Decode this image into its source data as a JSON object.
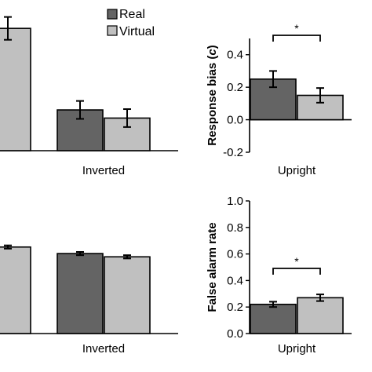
{
  "colors": {
    "real": "#646464",
    "virtual": "#c0c0c0",
    "axis": "#000000"
  },
  "legend": {
    "items": [
      {
        "label": "Real"
      },
      {
        "label": "Virtual"
      }
    ]
  },
  "chart_data": [
    {
      "panel": "top-left",
      "type": "bar",
      "categories": [
        "",
        "Inverted"
      ],
      "series": [
        {
          "name": "Real",
          "values": [
            null,
            1.0
          ],
          "errors": [
            null,
            0.22
          ]
        },
        {
          "name": "Virtual",
          "values": [
            3.0,
            0.8
          ],
          "errors": [
            0.28,
            0.22
          ]
        }
      ],
      "ylim": [
        0,
        3.6
      ]
    },
    {
      "panel": "top-right",
      "type": "bar",
      "categories": [
        "Upright"
      ],
      "series": [
        {
          "name": "Real",
          "values": [
            0.25
          ],
          "errors": [
            0.05
          ]
        },
        {
          "name": "Virtual",
          "values": [
            0.15
          ],
          "errors": [
            0.045
          ]
        }
      ],
      "ylabel": "Response bias (c)",
      "ylim": [
        -0.2,
        0.5
      ],
      "yticks": [
        "0.4",
        "0.2",
        "0.0",
        "-0.2"
      ],
      "significance": "*"
    },
    {
      "panel": "bottom-left",
      "type": "bar",
      "categories": [
        "",
        "Inverted"
      ],
      "series": [
        {
          "name": "Real",
          "values": [
            null,
            0.98
          ],
          "errors": [
            null,
            0.02
          ]
        },
        {
          "name": "Virtual",
          "values": [
            1.06,
            0.94
          ],
          "errors": [
            0.02,
            0.02
          ]
        }
      ],
      "ylim": [
        0,
        1.5
      ]
    },
    {
      "panel": "bottom-right",
      "type": "bar",
      "categories": [
        "Upright"
      ],
      "series": [
        {
          "name": "Real",
          "values": [
            0.22
          ],
          "errors": [
            0.02
          ]
        },
        {
          "name": "Virtual",
          "values": [
            0.27
          ],
          "errors": [
            0.025
          ]
        }
      ],
      "ylabel": "False alarm rate",
      "ylim": [
        0,
        1.0
      ],
      "yticks": [
        "1.0",
        "0.8",
        "0.6",
        "0.4",
        "0.2",
        "0.0"
      ],
      "significance": "*"
    }
  ]
}
